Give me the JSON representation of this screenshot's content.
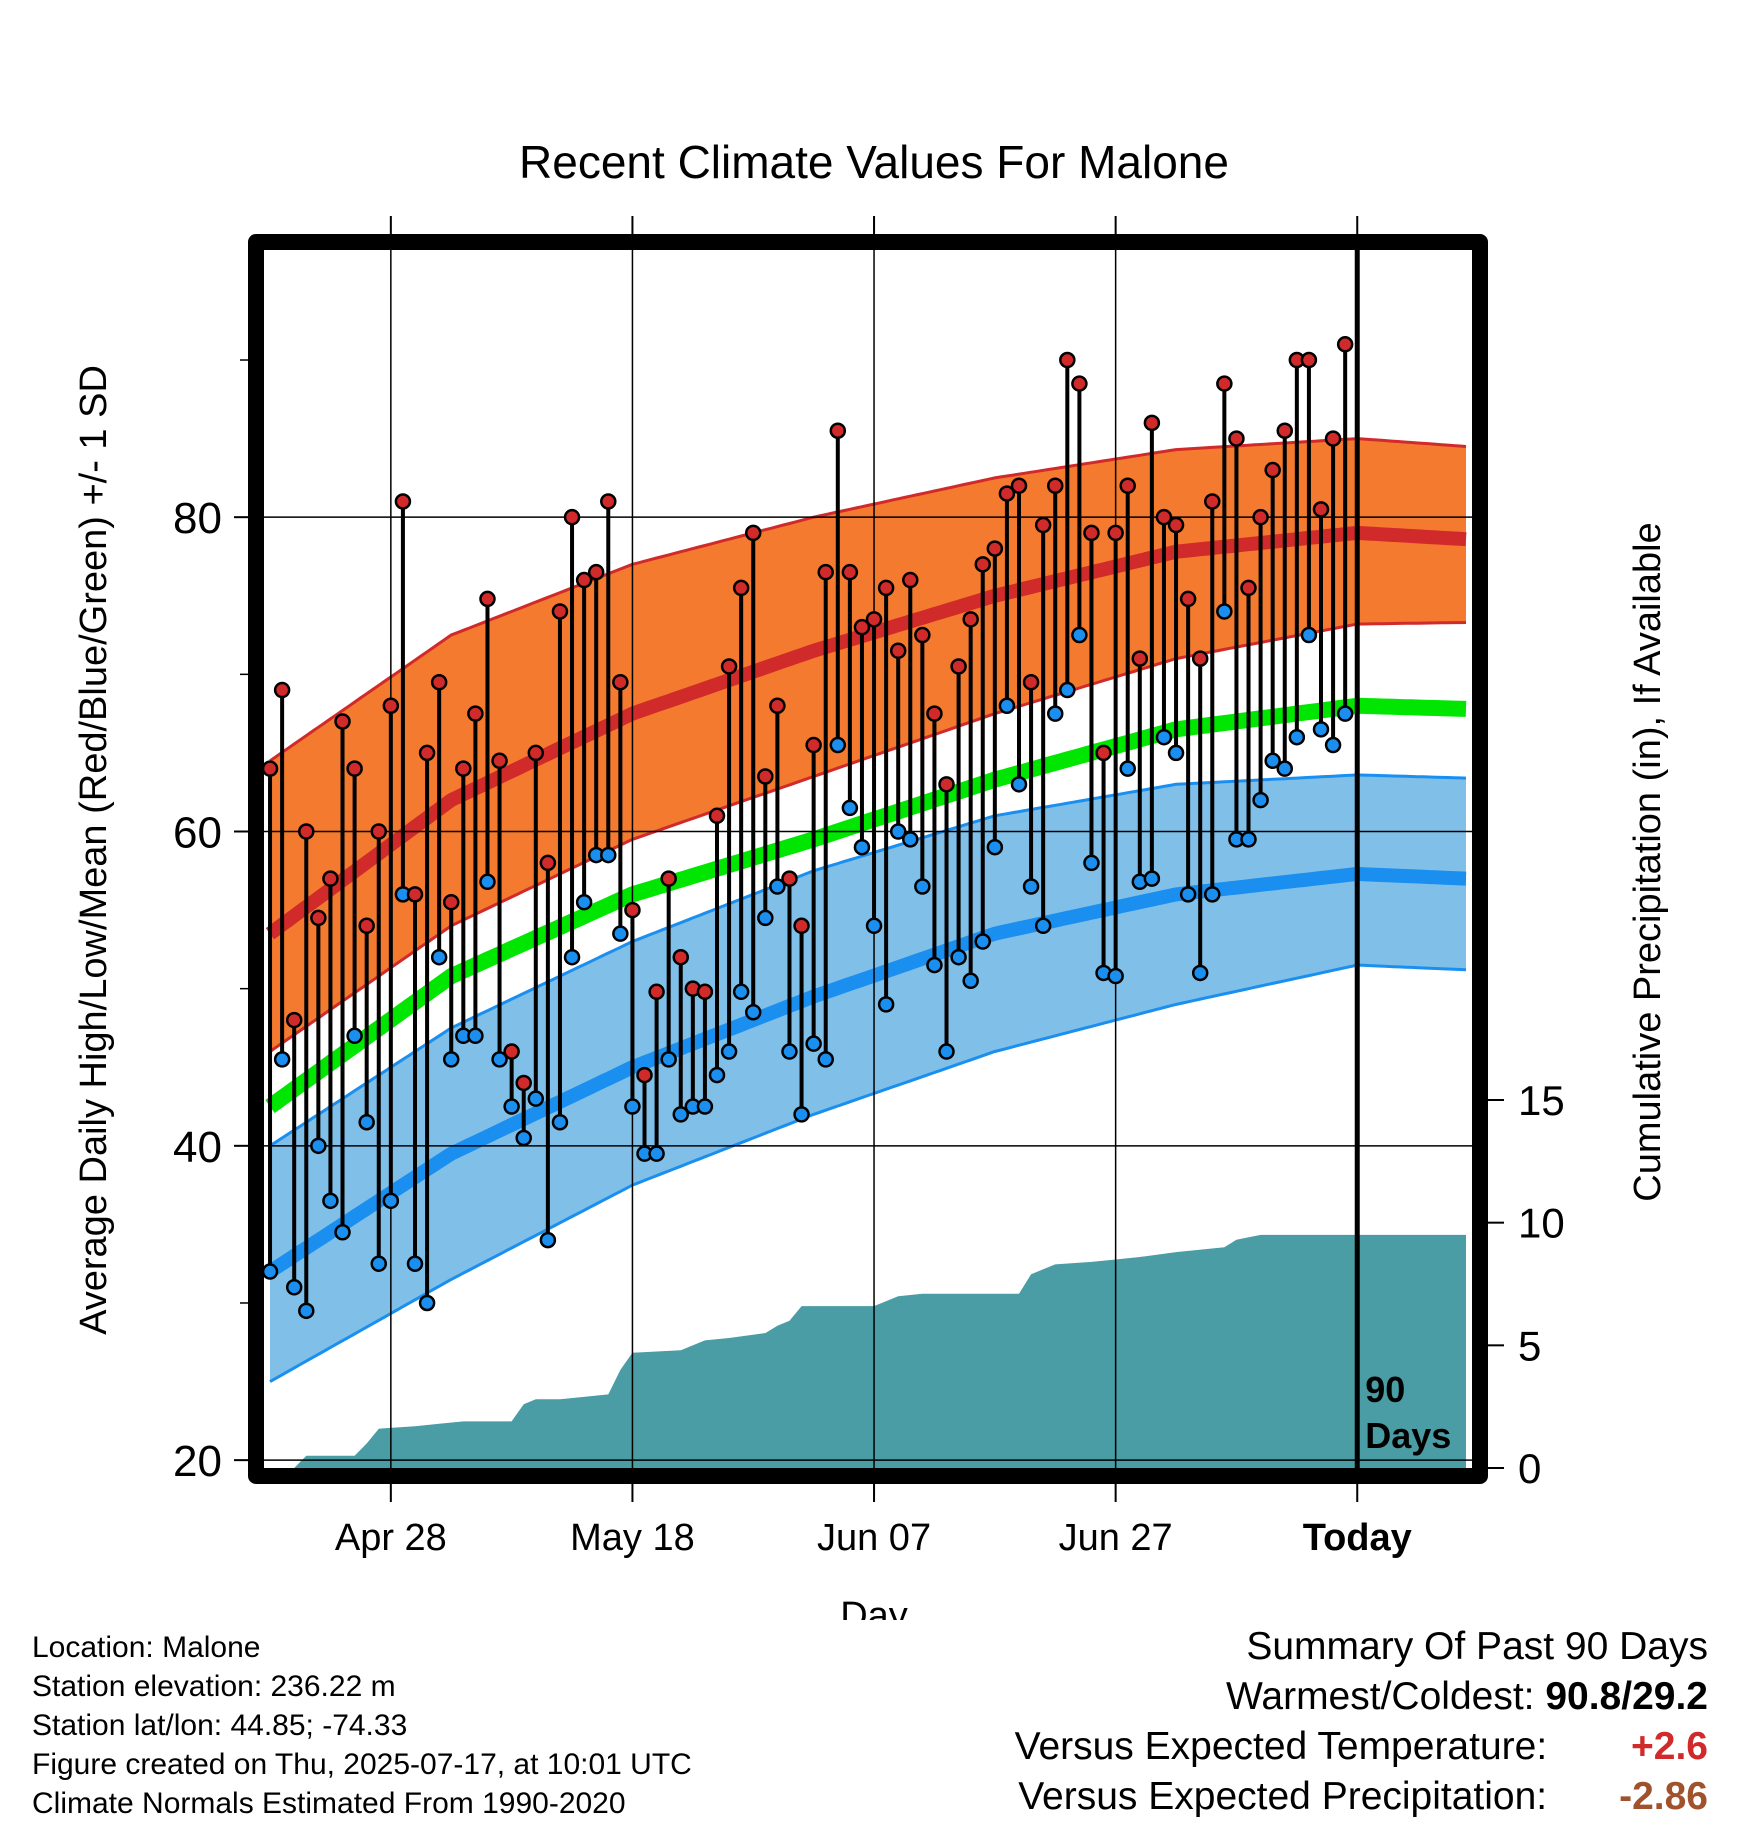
{
  "chart_data": {
    "type": "line",
    "title": "Recent Climate Values For Malone",
    "xlabel": "Day",
    "ylabel": "Average Daily High/Low/Mean (Red/Blue/Green) +/- 1 SD",
    "y2label": "Cumulative Precipitation (in), If Available",
    "ylim": [
      19.5,
      97
    ],
    "y2lim": [
      0,
      15
    ],
    "yticks": [
      "20",
      "40",
      "60",
      "80"
    ],
    "y2ticks": [
      "0",
      "5",
      "10",
      "15"
    ],
    "xticks": [
      {
        "day": 10,
        "label": "Apr 28"
      },
      {
        "day": 30,
        "label": "May 18"
      },
      {
        "day": 50,
        "label": "Jun 07"
      },
      {
        "day": 70,
        "label": "Jun 27"
      },
      {
        "day": 90,
        "label": "Today"
      }
    ],
    "xlim": [
      -0.5,
      99.5
    ],
    "today_marker": {
      "day": 90,
      "label_line1": "90",
      "label_line2": "Days"
    },
    "normal_high": {
      "days": [
        0,
        15,
        30,
        45,
        60,
        75,
        90,
        99
      ],
      "mean": [
        53.5,
        62,
        67.5,
        71.5,
        75,
        77.8,
        79,
        78.6
      ],
      "upper": [
        64.5,
        72.5,
        77,
        80,
        82.5,
        84.3,
        85,
        84.5
      ],
      "lower": [
        46,
        54,
        59.5,
        63.5,
        67.5,
        71,
        73.2,
        73.3
      ]
    },
    "normal_mean": {
      "days": [
        0,
        15,
        30,
        45,
        60,
        75,
        90,
        99
      ],
      "values": [
        42.5,
        50.8,
        56,
        59.5,
        63.3,
        66.5,
        68,
        67.8
      ]
    },
    "normal_low": {
      "days": [
        0,
        15,
        30,
        45,
        60,
        75,
        90,
        99
      ],
      "mean": [
        32,
        39.5,
        45,
        49.5,
        53.5,
        56,
        57.3,
        57
      ],
      "upper": [
        40,
        47.5,
        53,
        57.5,
        61,
        63,
        63.6,
        63.4
      ],
      "lower": [
        25,
        31.5,
        37.5,
        42,
        46,
        49,
        51.5,
        51.2
      ]
    },
    "daily": {
      "highs": [
        64,
        69,
        48,
        60,
        54.5,
        57,
        67,
        64,
        54,
        60,
        68,
        81,
        56,
        65,
        69.5,
        55.5,
        64,
        67.5,
        74.8,
        64.5,
        46,
        44,
        65,
        58,
        74,
        80,
        76,
        76.5,
        81,
        69.5,
        55,
        44.5,
        49.8,
        57,
        52,
        50,
        49.8,
        61,
        70.5,
        75.5,
        79,
        63.5,
        68,
        57,
        54,
        65.5,
        76.5,
        85.5,
        76.5,
        73,
        73.5,
        75.5,
        71.5,
        76,
        72.5,
        67.5,
        63,
        70.5,
        73.5,
        77,
        78,
        81.5,
        82,
        69.5,
        79.5,
        82,
        90,
        88.5,
        79,
        65,
        79,
        82,
        71,
        86,
        80,
        79.5,
        74.8,
        71,
        81,
        88.5,
        85,
        75.5,
        80,
        83,
        85.5,
        90,
        90,
        80.5,
        85,
        91
      ],
      "lows": [
        32,
        45.5,
        31,
        29.5,
        40,
        36.5,
        34.5,
        47,
        41.5,
        32.5,
        36.5,
        56,
        32.5,
        30,
        52,
        45.5,
        47,
        47,
        56.8,
        45.5,
        42.5,
        40.5,
        43,
        34,
        41.5,
        52,
        55.5,
        58.5,
        58.5,
        53.5,
        42.5,
        39.5,
        39.5,
        45.5,
        42,
        42.5,
        42.5,
        44.5,
        46,
        49.8,
        48.5,
        54.5,
        56.5,
        46,
        42,
        46.5,
        45.5,
        65.5,
        61.5,
        59,
        54,
        49,
        60,
        59.5,
        56.5,
        51.5,
        46,
        52,
        50.5,
        53,
        59,
        68,
        63,
        56.5,
        54,
        67.5,
        69,
        72.5,
        58,
        51,
        50.8,
        64,
        56.8,
        57,
        66,
        65,
        56,
        51,
        56,
        74,
        59.5,
        59.5,
        62,
        64.5,
        64,
        66,
        72.5,
        66.5,
        65.5,
        67.5
      ]
    },
    "precipitation": {
      "days": [
        0,
        2,
        3,
        7,
        8,
        9,
        12,
        14,
        16,
        20,
        21,
        22,
        24,
        28,
        29,
        30,
        34,
        36,
        38,
        41,
        42,
        43,
        44,
        48,
        50,
        52,
        54,
        62,
        63,
        64,
        65,
        68,
        70,
        72,
        75,
        79,
        80,
        82,
        99
      ],
      "values": [
        0,
        0,
        0.5,
        0.5,
        1.0,
        1.6,
        1.7,
        1.8,
        1.9,
        1.9,
        2.6,
        2.8,
        2.8,
        3.0,
        4.0,
        4.7,
        4.8,
        5.2,
        5.3,
        5.5,
        5.8,
        6.0,
        6.6,
        6.6,
        6.6,
        7.0,
        7.1,
        7.1,
        7.9,
        8.1,
        8.3,
        8.4,
        8.5,
        8.6,
        8.8,
        9.0,
        9.3,
        9.5,
        9.5
      ]
    }
  },
  "info": {
    "location": "Location: Malone",
    "elevation": "Station elevation: 236.22 m",
    "latlon": "Station lat/lon: 44.85; -74.33",
    "created": "Figure created on Thu, 2025-07-17, at 10:01 UTC",
    "normals": "Climate Normals Estimated From 1990-2020"
  },
  "summary": {
    "title": "Summary Of Past 90 Days",
    "extremes_label": "Warmest/Coldest:",
    "extremes_value": "90.8/29.2",
    "temp_label": "Versus Expected Temperature:",
    "temp_value": "+2.6",
    "temp_color": "#d12a2a",
    "precip_label": "Versus Expected Precipitation:",
    "precip_value": "-2.86",
    "precip_color": "#a0522d"
  },
  "colors": {
    "high_band": "#f37a2e",
    "high_line": "#d12a2a",
    "mean_line": "#00e600",
    "low_band": "#80c0e8",
    "low_line": "#1a8fef",
    "precip": "#4a9ca5",
    "high_dot": "#d12a2a",
    "low_dot": "#1a8fef"
  }
}
